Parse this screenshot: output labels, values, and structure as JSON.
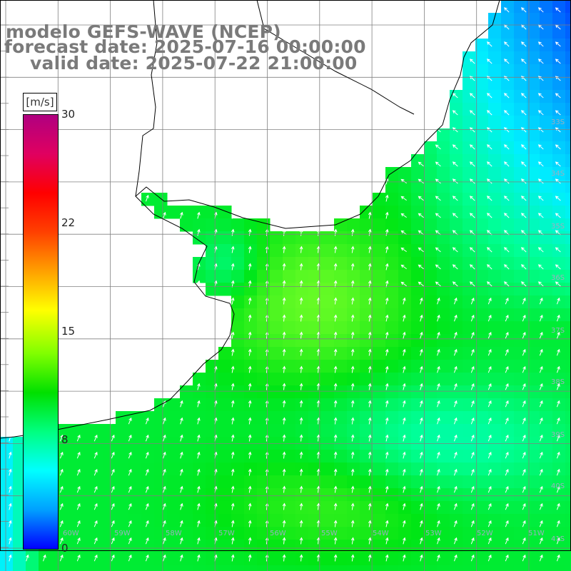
{
  "title": {
    "line1": "modelo GEFS-WAVE (NCEP)",
    "line2": "forecast date: 2025-07-16 00:00:00",
    "line3": "valid date: 2025-07-22 21:00:00"
  },
  "colorbar": {
    "units": "[m/s]",
    "ticks": [
      "30",
      "22",
      "15",
      "8",
      "0"
    ],
    "colors": [
      "#0000ff",
      "#00a0ff",
      "#00ffff",
      "#00ff80",
      "#00e000",
      "#80ff00",
      "#ffff00",
      "#ffa000",
      "#ff4000",
      "#ff0000",
      "#e00060",
      "#b00080"
    ]
  },
  "lon_labels": [
    "60W",
    "59W",
    "58W",
    "57W",
    "56W",
    "55W",
    "54W",
    "53W",
    "52W",
    "51W"
  ],
  "lat_labels": [
    "33S",
    "34S",
    "35S",
    "36S",
    "37S",
    "38S",
    "39S",
    "40S",
    "41S"
  ],
  "map": {
    "ocean_color_low": "#0a3cff",
    "ocean_color_high": "#7cff20",
    "land_color": "#ffffff",
    "coastline_color": "#000000",
    "grid_color": "#808080",
    "arrow_color": "#ffffff"
  }
}
